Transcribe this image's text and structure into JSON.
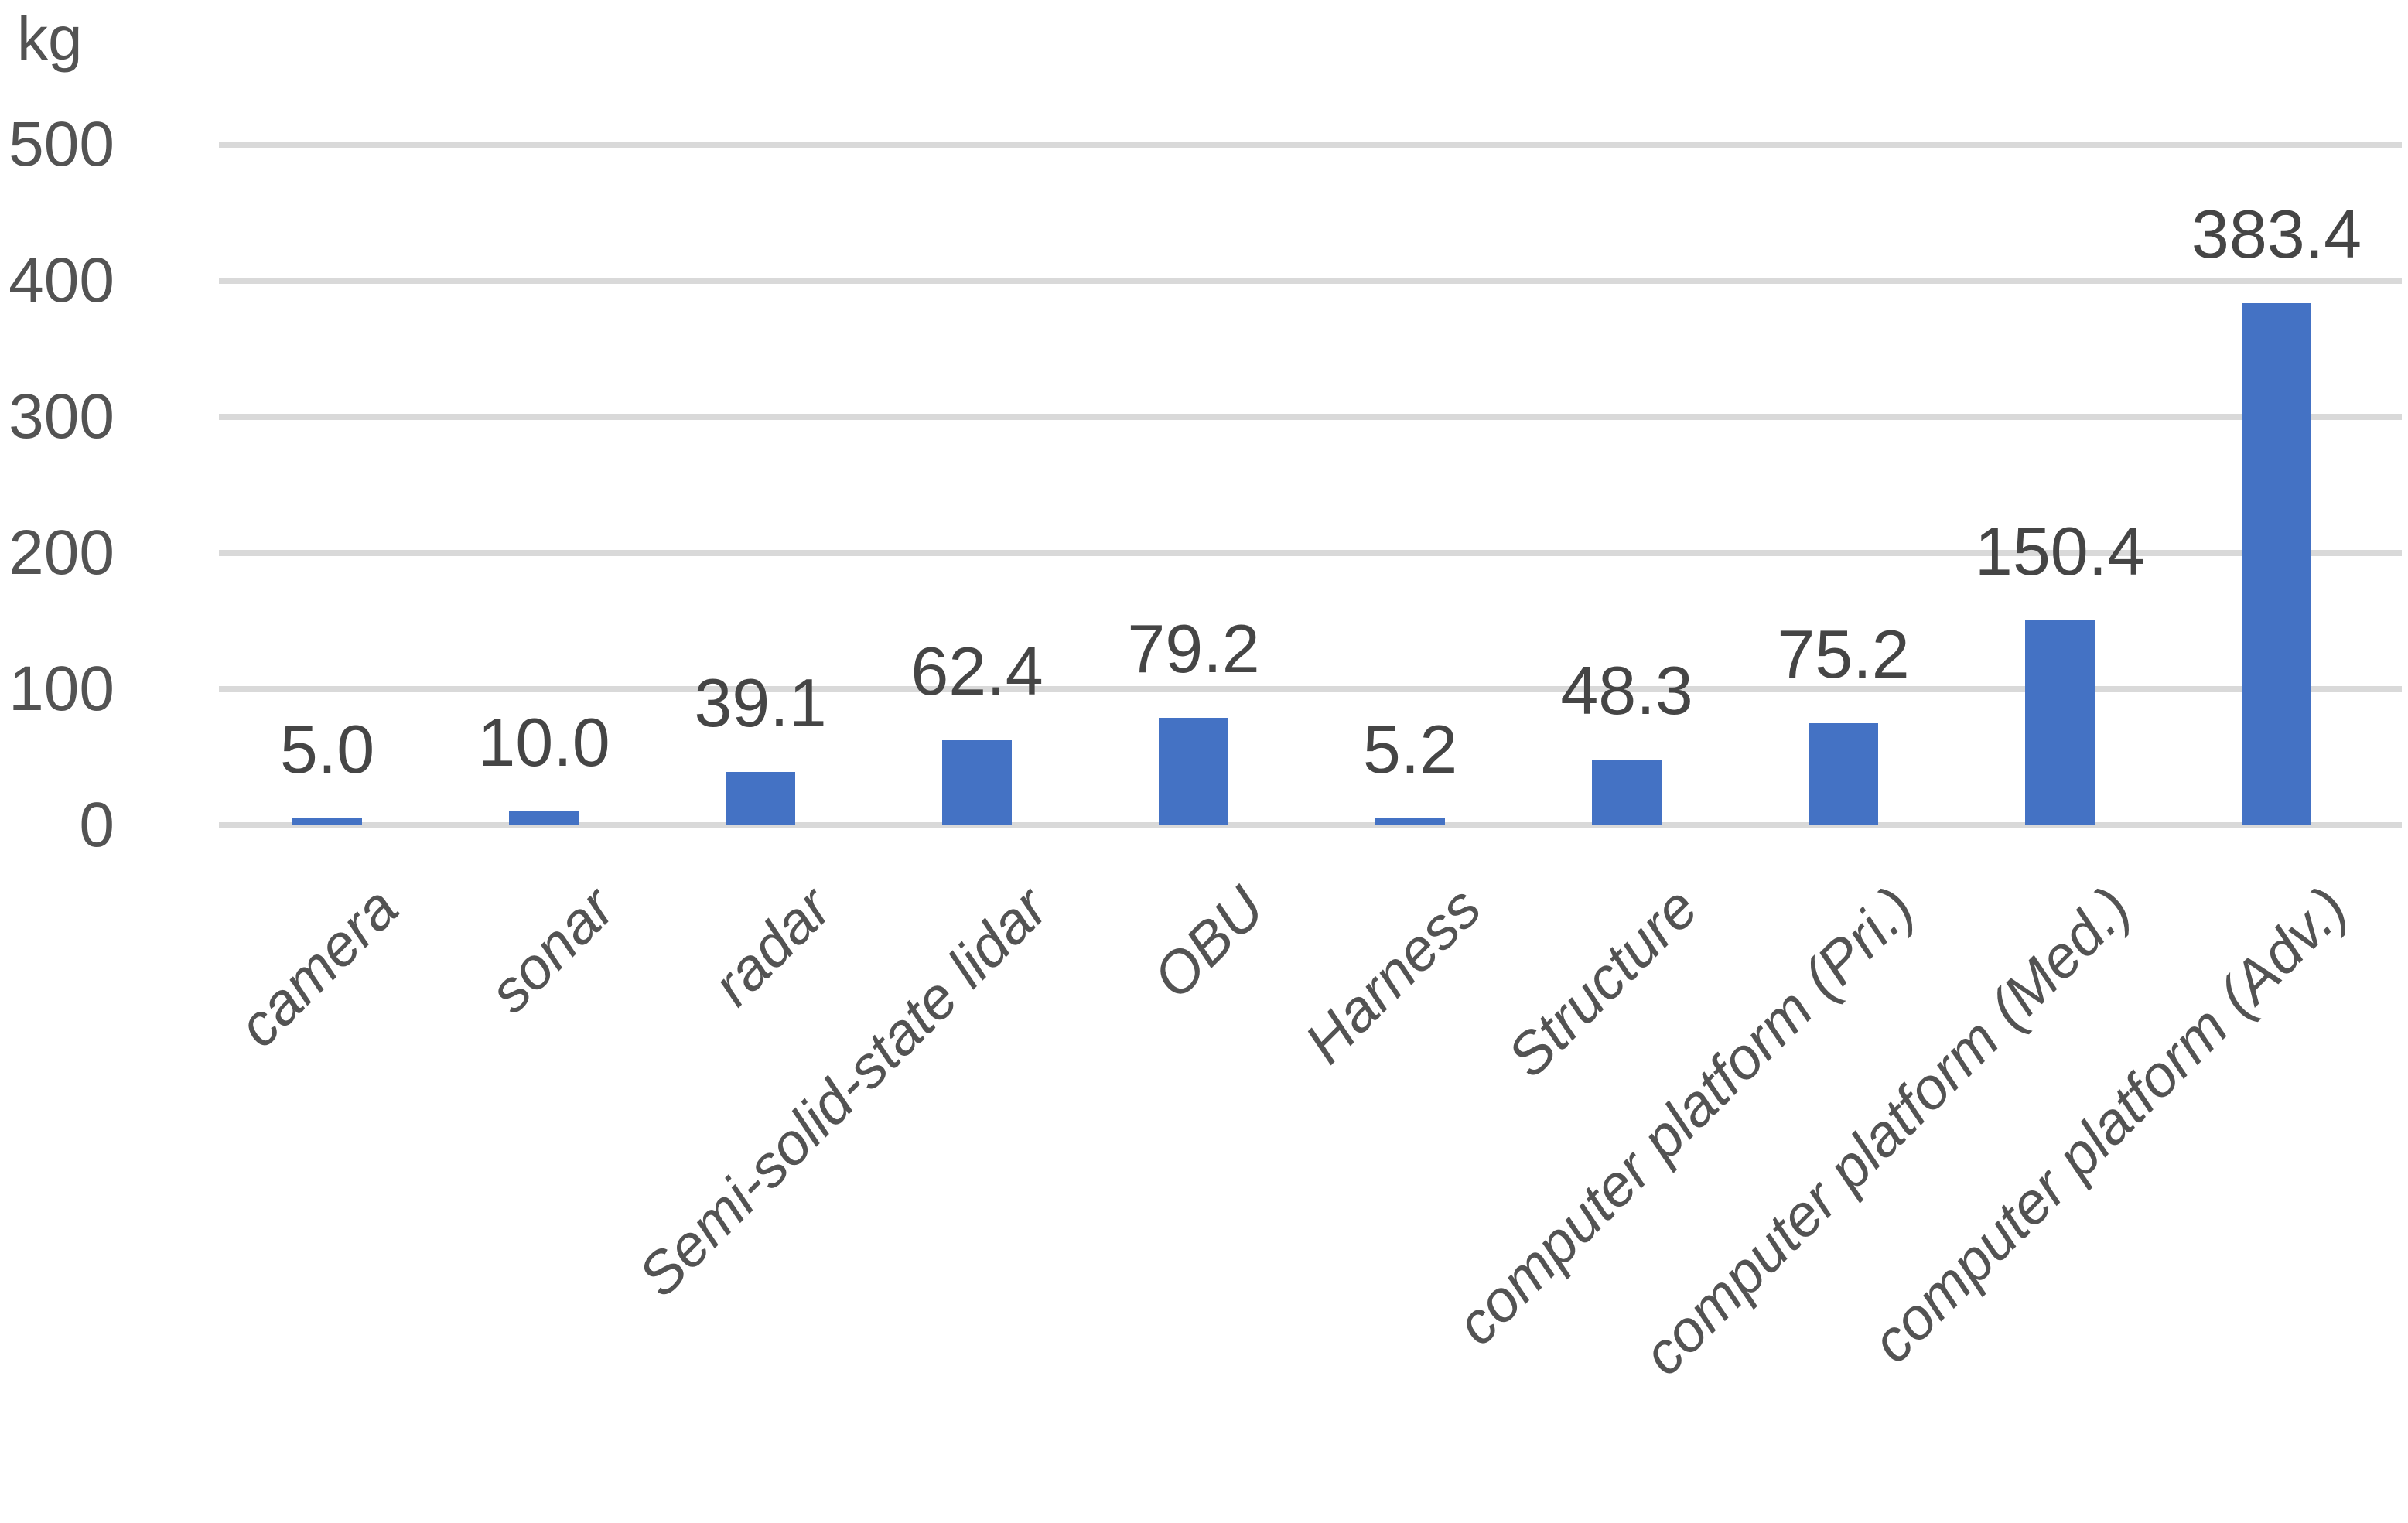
{
  "chart_data": {
    "type": "bar",
    "title": "",
    "unit_label": "kg",
    "categories": [
      "camera",
      "sonar",
      "radar",
      "Semi-solid-state lidar",
      "OBU",
      "Harness",
      "Structure",
      "computer platform (Pri.)",
      "computer platform (Med.)",
      "computer platform (Adv.)"
    ],
    "values": [
      5.0,
      10.0,
      39.1,
      62.4,
      79.2,
      5.2,
      48.3,
      75.2,
      150.4,
      383.4
    ],
    "data_labels": [
      "5.0",
      "10.0",
      "39.1",
      "62.4",
      "79.2",
      "5.2",
      "48.3",
      "75.2",
      "150.4",
      "383.4"
    ],
    "xlabel": "",
    "ylabel": "kg",
    "ylim": [
      0,
      500
    ],
    "yticks": [
      "0",
      "100",
      "200",
      "300",
      "400",
      "500"
    ],
    "ytick_values": [
      0,
      100,
      200,
      300,
      400,
      500
    ],
    "grid": "horizontal",
    "legend": "none",
    "colors": {
      "bar": "#4472C4",
      "gridline": "#D9D9D9",
      "tick_text": "#535353",
      "category_text": "#535353",
      "data_label_text": "#454545",
      "background": "#FFFFFF"
    }
  }
}
